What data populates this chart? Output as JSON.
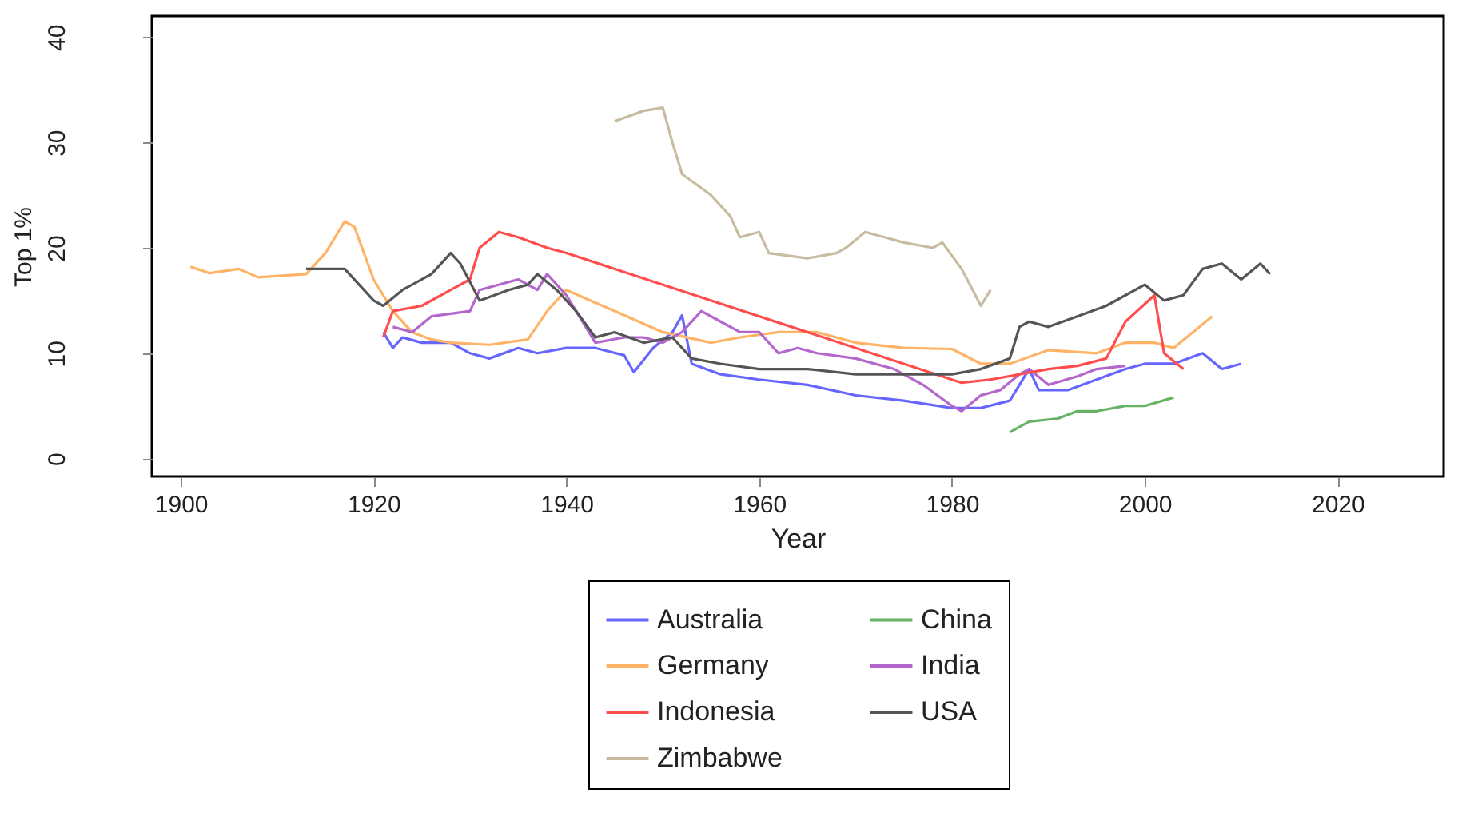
{
  "chart_data": {
    "type": "line",
    "xlabel": "Year",
    "ylabel": "Top 1%",
    "xlim": [
      1897,
      2031
    ],
    "ylim": [
      -1.7,
      42
    ],
    "xticks": [
      1900,
      1920,
      1940,
      1960,
      1980,
      2000,
      2020
    ],
    "yticks": [
      0,
      10,
      20,
      30,
      40
    ],
    "grid": false,
    "legend": "bottom",
    "line_style": "solid",
    "marker": "none",
    "series": [
      {
        "name": "Australia",
        "color": "#6666ff",
        "x": [
          1921,
          1922,
          1923,
          1925,
          1928,
          1930,
          1932,
          1935,
          1937,
          1940,
          1943,
          1946,
          1947,
          1949,
          1951,
          1952,
          1953,
          1956,
          1960,
          1965,
          1970,
          1975,
          1980,
          1983,
          1986,
          1988,
          1989,
          1992,
          1995,
          1998,
          2000,
          2003,
          2006,
          2008,
          2010
        ],
        "values": [
          12,
          10.5,
          11.5,
          11,
          11,
          10,
          9.5,
          10.5,
          10,
          10.5,
          10.5,
          9.8,
          8.2,
          10.5,
          12,
          13.6,
          9,
          8,
          7.5,
          7,
          6,
          5.5,
          4.8,
          4.8,
          5.5,
          8.5,
          6.5,
          6.5,
          7.5,
          8.5,
          9,
          9,
          10,
          8.5,
          9
        ]
      },
      {
        "name": "China",
        "color": "#66b366",
        "x": [
          1986,
          1988,
          1991,
          1993,
          1995,
          1998,
          2000,
          2003
        ],
        "values": [
          2.5,
          3.5,
          3.8,
          4.5,
          4.5,
          5,
          5,
          5.8
        ]
      },
      {
        "name": "Germany",
        "color": "#ffb366",
        "x": [
          1901,
          1903,
          1906,
          1908,
          1913,
          1915,
          1917,
          1918,
          1920,
          1922,
          1924,
          1926,
          1928,
          1932,
          1936,
          1938,
          1940,
          1945,
          1950,
          1955,
          1958,
          1962,
          1966,
          1970,
          1975,
          1980,
          1983,
          1986,
          1990,
          1995,
          1998,
          2001,
          2003,
          2005,
          2007
        ],
        "values": [
          18.2,
          17.6,
          18,
          17.2,
          17.5,
          19.5,
          22.5,
          22,
          17,
          14,
          12,
          11.3,
          11,
          10.8,
          11.3,
          14,
          16,
          14,
          12,
          11,
          11.5,
          12,
          12,
          11,
          10.5,
          10.4,
          9,
          9,
          10.3,
          10,
          11,
          11,
          10.5,
          12,
          13.5
        ]
      },
      {
        "name": "India",
        "color": "#b366cc",
        "x": [
          1922,
          1924,
          1926,
          1930,
          1931,
          1935,
          1937,
          1938,
          1940,
          1943,
          1946,
          1948,
          1950,
          1952,
          1954,
          1956,
          1958,
          1960,
          1962,
          1964,
          1966,
          1970,
          1974,
          1977,
          1980,
          1981,
          1983,
          1985,
          1987,
          1988,
          1990,
          1993,
          1995,
          1998
        ],
        "values": [
          12.5,
          12,
          13.5,
          14,
          16,
          17,
          16,
          17.5,
          15.5,
          11,
          11.5,
          11.5,
          11,
          12,
          14,
          13,
          12,
          12,
          10,
          10.5,
          10,
          9.5,
          8.5,
          7,
          5,
          4.5,
          6,
          6.5,
          8,
          8.5,
          7,
          7.8,
          8.5,
          8.8
        ]
      },
      {
        "name": "Indonesia",
        "color": "#ff4d4d",
        "x": [
          1921,
          1922,
          1925,
          1928,
          1930,
          1931,
          1933,
          1935,
          1938,
          1940,
          1981,
          1984,
          1987,
          1990,
          1993,
          1996,
          1998,
          2001,
          2002,
          2004
        ],
        "values": [
          11.5,
          14,
          14.5,
          16,
          17,
          20,
          21.5,
          21,
          20,
          19.5,
          7.2,
          7.5,
          8,
          8.5,
          8.8,
          9.5,
          13,
          15.5,
          10,
          8.5
        ]
      },
      {
        "name": "USA",
        "color": "#555555",
        "x": [
          1913,
          1915,
          1917,
          1919,
          1920,
          1921,
          1923,
          1926,
          1928,
          1929,
          1931,
          1934,
          1936,
          1937,
          1939,
          1941,
          1943,
          1945,
          1948,
          1951,
          1953,
          1956,
          1960,
          1965,
          1970,
          1975,
          1980,
          1983,
          1986,
          1987,
          1988,
          1990,
          1993,
          1996,
          2000,
          2002,
          2004,
          2006,
          2008,
          2010,
          2012,
          2013
        ],
        "values": [
          18,
          18,
          18,
          16,
          15,
          14.5,
          16,
          17.5,
          19.5,
          18.5,
          15,
          16,
          16.5,
          17.5,
          16,
          14,
          11.5,
          12,
          11,
          11.5,
          9.5,
          9,
          8.5,
          8.5,
          8,
          8,
          8,
          8.5,
          9.5,
          12.5,
          13,
          12.5,
          13.5,
          14.5,
          16.5,
          15,
          15.5,
          18,
          18.5,
          17,
          18.5,
          17.5
        ]
      },
      {
        "name": "Zimbabwe",
        "color": "#c8bca0",
        "x": [
          1945,
          1948,
          1950,
          1951,
          1952,
          1955,
          1957,
          1958,
          1960,
          1961,
          1965,
          1968,
          1969,
          1971,
          1973,
          1975,
          1978,
          1979,
          1981,
          1983,
          1984
        ],
        "values": [
          32,
          33,
          33.3,
          30,
          27,
          25,
          23,
          21,
          21.5,
          19.5,
          19,
          19.5,
          20,
          21.5,
          21,
          20.5,
          20,
          20.5,
          18,
          14.5,
          16
        ]
      }
    ]
  }
}
